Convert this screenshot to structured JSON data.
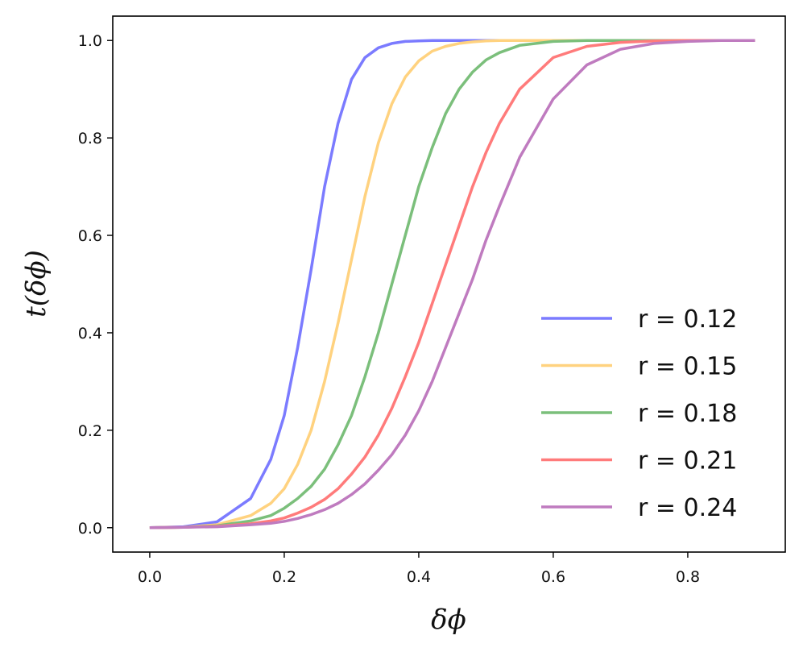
{
  "chart_data": {
    "type": "line",
    "xlabel": "δϕ",
    "ylabel": "t(δϕ)",
    "xlim": [
      -0.055,
      0.945
    ],
    "ylim": [
      -0.05,
      1.05
    ],
    "x_ticks": [
      "0.0",
      "0.2",
      "0.4",
      "0.6",
      "0.8"
    ],
    "y_ticks": [
      "0.0",
      "0.2",
      "0.4",
      "0.6",
      "0.8",
      "1.0"
    ],
    "grid": false,
    "legend_position": "lower-right",
    "x": [
      0.0,
      0.05,
      0.1,
      0.15,
      0.18,
      0.2,
      0.22,
      0.24,
      0.26,
      0.28,
      0.3,
      0.32,
      0.34,
      0.36,
      0.38,
      0.4,
      0.42,
      0.44,
      0.46,
      0.48,
      0.5,
      0.52,
      0.55,
      0.6,
      0.65,
      0.7,
      0.75,
      0.8,
      0.85,
      0.9
    ],
    "series": [
      {
        "name": "r = 0.12",
        "color": "#7b7bff",
        "values": [
          0.0,
          0.002,
          0.012,
          0.06,
          0.14,
          0.23,
          0.37,
          0.53,
          0.7,
          0.83,
          0.92,
          0.965,
          0.985,
          0.994,
          0.998,
          0.999,
          1.0,
          1.0,
          1.0,
          1.0,
          1.0,
          1.0,
          1.0,
          1.0,
          1.0,
          1.0,
          1.0,
          1.0,
          1.0,
          1.0
        ]
      },
      {
        "name": "r = 0.15",
        "color": "#ffd27f",
        "values": [
          0.0,
          0.001,
          0.006,
          0.025,
          0.05,
          0.08,
          0.13,
          0.2,
          0.3,
          0.42,
          0.55,
          0.68,
          0.79,
          0.87,
          0.925,
          0.958,
          0.978,
          0.988,
          0.994,
          0.997,
          0.999,
          1.0,
          1.0,
          1.0,
          1.0,
          1.0,
          1.0,
          1.0,
          1.0,
          1.0
        ]
      },
      {
        "name": "r = 0.18",
        "color": "#7bbf7b",
        "values": [
          0.0,
          0.001,
          0.004,
          0.014,
          0.025,
          0.04,
          0.06,
          0.085,
          0.12,
          0.17,
          0.23,
          0.31,
          0.4,
          0.5,
          0.6,
          0.7,
          0.78,
          0.85,
          0.9,
          0.935,
          0.96,
          0.975,
          0.99,
          0.998,
          1.0,
          1.0,
          1.0,
          1.0,
          1.0,
          1.0
        ]
      },
      {
        "name": "r = 0.21",
        "color": "#ff7b7b",
        "values": [
          0.0,
          0.001,
          0.003,
          0.008,
          0.014,
          0.02,
          0.03,
          0.042,
          0.058,
          0.08,
          0.11,
          0.145,
          0.19,
          0.245,
          0.31,
          0.38,
          0.46,
          0.54,
          0.62,
          0.7,
          0.77,
          0.83,
          0.9,
          0.965,
          0.988,
          0.996,
          0.999,
          1.0,
          1.0,
          1.0
        ]
      },
      {
        "name": "r = 0.24",
        "color": "#bf7bbf",
        "values": [
          0.0,
          0.001,
          0.002,
          0.006,
          0.009,
          0.013,
          0.019,
          0.027,
          0.037,
          0.05,
          0.068,
          0.09,
          0.118,
          0.15,
          0.19,
          0.24,
          0.3,
          0.37,
          0.44,
          0.51,
          0.59,
          0.66,
          0.76,
          0.88,
          0.95,
          0.982,
          0.994,
          0.998,
          1.0,
          1.0
        ]
      }
    ]
  }
}
